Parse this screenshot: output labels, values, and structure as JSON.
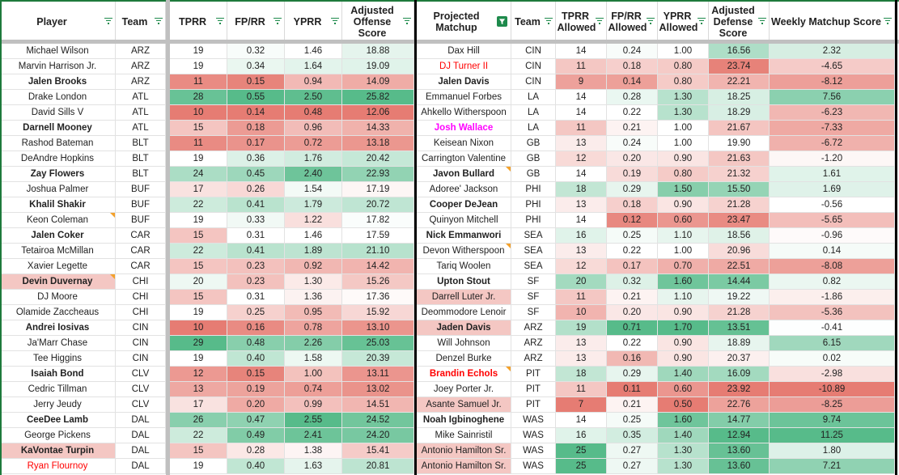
{
  "headers": {
    "left": [
      "Player",
      "Team",
      "TPRR",
      "FP/RR",
      "YPRR",
      "Adjusted Offense Score"
    ],
    "right": [
      "Projected Matchup",
      "Team",
      "TPRR Allowed",
      "FP/RR Allowed",
      "YPRR Allowed",
      "Adjusted Defense Score",
      "Weekly Matchup Score"
    ]
  },
  "icons": {
    "filter": "filter-icon",
    "active_filter": "active-filter-icon"
  },
  "colors": {
    "green_max": "#57bb8a",
    "red_max": "#e67c73",
    "neutral": "#ffffff",
    "header_accent": "#1e8a4c",
    "red_text": "#ff0000",
    "magenta_text": "#ff00ff"
  },
  "rows": [
    {
      "player": "Michael Wilson",
      "team": "ARZ",
      "tprr": "19",
      "fprr": "0.32",
      "yprr": "1.46",
      "aos": "18.88",
      "opp": "Dax Hill",
      "oteam": "CIN",
      "tpa": "14",
      "fpa": "0.24",
      "ypa": "1.00",
      "ads": "16.56",
      "wms": "2.32"
    },
    {
      "player": "Marvin Harrison Jr.",
      "team": "ARZ",
      "tprr": "19",
      "fprr": "0.34",
      "yprr": "1.64",
      "aos": "19.09",
      "opp": "DJ Turner II",
      "oteam": "CIN",
      "tpa": "11",
      "fpa": "0.18",
      "ypa": "0.80",
      "ads": "23.74",
      "wms": "-4.65"
    },
    {
      "player": "Jalen Brooks",
      "team": "ARZ",
      "tprr": "11",
      "fprr": "0.15",
      "yprr": "0.94",
      "aos": "14.09",
      "opp": "Jalen Davis",
      "oteam": "CIN",
      "tpa": "9",
      "fpa": "0.14",
      "ypa": "0.80",
      "ads": "22.21",
      "wms": "-8.12"
    },
    {
      "player": "Drake London",
      "team": "ATL",
      "tprr": "28",
      "fprr": "0.55",
      "yprr": "2.50",
      "aos": "25.82",
      "opp": "Emmanuel Forbes",
      "oteam": "LA",
      "tpa": "14",
      "fpa": "0.28",
      "ypa": "1.30",
      "ads": "18.25",
      "wms": "7.56"
    },
    {
      "player": "David Sills V",
      "team": "ATL",
      "tprr": "10",
      "fprr": "0.14",
      "yprr": "0.48",
      "aos": "12.06",
      "opp": "Ahkello Witherspoon",
      "oteam": "LA",
      "tpa": "14",
      "fpa": "0.22",
      "ypa": "1.30",
      "ads": "18.29",
      "wms": "-6.23"
    },
    {
      "player": "Darnell Mooney",
      "team": "ATL",
      "tprr": "15",
      "fprr": "0.18",
      "yprr": "0.96",
      "aos": "14.33",
      "opp": "Josh Wallace",
      "oteam": "LA",
      "tpa": "11",
      "fpa": "0.21",
      "ypa": "1.00",
      "ads": "21.67",
      "wms": "-7.33"
    },
    {
      "player": "Rashod Bateman",
      "team": "BLT",
      "tprr": "11",
      "fprr": "0.17",
      "yprr": "0.72",
      "aos": "13.18",
      "opp": "Keisean Nixon",
      "oteam": "GB",
      "tpa": "13",
      "fpa": "0.24",
      "ypa": "1.00",
      "ads": "19.90",
      "wms": "-6.72"
    },
    {
      "player": "DeAndre Hopkins",
      "team": "BLT",
      "tprr": "19",
      "fprr": "0.36",
      "yprr": "1.76",
      "aos": "20.42",
      "opp": "Carrington Valentine",
      "oteam": "GB",
      "tpa": "12",
      "fpa": "0.20",
      "ypa": "0.90",
      "ads": "21.63",
      "wms": "-1.20"
    },
    {
      "player": "Zay Flowers",
      "team": "BLT",
      "tprr": "24",
      "fprr": "0.45",
      "yprr": "2.40",
      "aos": "22.93",
      "opp": "Javon Bullard",
      "oteam": "GB",
      "tpa": "14",
      "fpa": "0.19",
      "ypa": "0.80",
      "ads": "21.32",
      "wms": "1.61"
    },
    {
      "player": "Joshua Palmer",
      "team": "BUF",
      "tprr": "17",
      "fprr": "0.26",
      "yprr": "1.54",
      "aos": "17.19",
      "opp": "Adoree' Jackson",
      "oteam": "PHI",
      "tpa": "18",
      "fpa": "0.29",
      "ypa": "1.50",
      "ads": "15.50",
      "wms": "1.69"
    },
    {
      "player": "Khalil Shakir",
      "team": "BUF",
      "tprr": "22",
      "fprr": "0.41",
      "yprr": "1.79",
      "aos": "20.72",
      "opp": "Cooper DeJean",
      "oteam": "PHI",
      "tpa": "13",
      "fpa": "0.18",
      "ypa": "0.90",
      "ads": "21.28",
      "wms": "-0.56"
    },
    {
      "player": "Keon Coleman",
      "team": "BUF",
      "tprr": "19",
      "fprr": "0.33",
      "yprr": "1.22",
      "aos": "17.82",
      "opp": "Quinyon Mitchell",
      "oteam": "PHI",
      "tpa": "14",
      "fpa": "0.12",
      "ypa": "0.60",
      "ads": "23.47",
      "wms": "-5.65"
    },
    {
      "player": "Jalen Coker",
      "team": "CAR",
      "tprr": "15",
      "fprr": "0.31",
      "yprr": "1.46",
      "aos": "17.59",
      "opp": "Nick Emmanwori",
      "oteam": "SEA",
      "tpa": "16",
      "fpa": "0.25",
      "ypa": "1.10",
      "ads": "18.56",
      "wms": "-0.96"
    },
    {
      "player": "Tetairoa McMillan",
      "team": "CAR",
      "tprr": "22",
      "fprr": "0.41",
      "yprr": "1.89",
      "aos": "21.10",
      "opp": "Devon Witherspoon",
      "oteam": "SEA",
      "tpa": "13",
      "fpa": "0.22",
      "ypa": "1.00",
      "ads": "20.96",
      "wms": "0.14"
    },
    {
      "player": "Xavier Legette",
      "team": "CAR",
      "tprr": "15",
      "fprr": "0.23",
      "yprr": "0.92",
      "aos": "14.42",
      "opp": "Tariq Woolen",
      "oteam": "SEA",
      "tpa": "12",
      "fpa": "0.17",
      "ypa": "0.70",
      "ads": "22.51",
      "wms": "-8.08"
    },
    {
      "player": "Devin Duvernay",
      "team": "CHI",
      "tprr": "20",
      "fprr": "0.23",
      "yprr": "1.30",
      "aos": "15.26",
      "opp": "Upton Stout",
      "oteam": "SF",
      "tpa": "20",
      "fpa": "0.32",
      "ypa": "1.60",
      "ads": "14.44",
      "wms": "0.82"
    },
    {
      "player": "DJ Moore",
      "team": "CHI",
      "tprr": "15",
      "fprr": "0.31",
      "yprr": "1.36",
      "aos": "17.36",
      "opp": "Darrell Luter Jr.",
      "oteam": "SF",
      "tpa": "11",
      "fpa": "0.21",
      "ypa": "1.10",
      "ads": "19.22",
      "wms": "-1.86"
    },
    {
      "player": "Olamide Zaccheaus",
      "team": "CHI",
      "tprr": "19",
      "fprr": "0.25",
      "yprr": "0.95",
      "aos": "15.92",
      "opp": "Deommodore Lenoir",
      "oteam": "SF",
      "tpa": "10",
      "fpa": "0.20",
      "ypa": "0.90",
      "ads": "21.28",
      "wms": "-5.36"
    },
    {
      "player": "Andrei Iosivas",
      "team": "CIN",
      "tprr": "10",
      "fprr": "0.16",
      "yprr": "0.78",
      "aos": "13.10",
      "opp": "Jaden Davis",
      "oteam": "ARZ",
      "tpa": "19",
      "fpa": "0.71",
      "ypa": "1.70",
      "ads": "13.51",
      "wms": "-0.41"
    },
    {
      "player": "Ja'Marr Chase",
      "team": "CIN",
      "tprr": "29",
      "fprr": "0.48",
      "yprr": "2.26",
      "aos": "25.03",
      "opp": "Will Johnson",
      "oteam": "ARZ",
      "tpa": "13",
      "fpa": "0.22",
      "ypa": "0.90",
      "ads": "18.89",
      "wms": "6.15"
    },
    {
      "player": "Tee Higgins",
      "team": "CIN",
      "tprr": "19",
      "fprr": "0.40",
      "yprr": "1.58",
      "aos": "20.39",
      "opp": "Denzel Burke",
      "oteam": "ARZ",
      "tpa": "13",
      "fpa": "0.16",
      "ypa": "0.90",
      "ads": "20.37",
      "wms": "0.02"
    },
    {
      "player": "Isaiah Bond",
      "team": "CLV",
      "tprr": "12",
      "fprr": "0.15",
      "yprr": "1.00",
      "aos": "13.11",
      "opp": "Brandin Echols",
      "oteam": "PIT",
      "tpa": "18",
      "fpa": "0.29",
      "ypa": "1.40",
      "ads": "16.09",
      "wms": "-2.98"
    },
    {
      "player": "Cedric Tillman",
      "team": "CLV",
      "tprr": "13",
      "fprr": "0.19",
      "yprr": "0.74",
      "aos": "13.02",
      "opp": "Joey Porter Jr.",
      "oteam": "PIT",
      "tpa": "11",
      "fpa": "0.11",
      "ypa": "0.60",
      "ads": "23.92",
      "wms": "-10.89"
    },
    {
      "player": "Jerry Jeudy",
      "team": "CLV",
      "tprr": "17",
      "fprr": "0.20",
      "yprr": "0.99",
      "aos": "14.51",
      "opp": "Asante Samuel Jr.",
      "oteam": "PIT",
      "tpa": "7",
      "fpa": "0.21",
      "ypa": "0.50",
      "ads": "22.76",
      "wms": "-8.25"
    },
    {
      "player": "CeeDee Lamb",
      "team": "DAL",
      "tprr": "26",
      "fprr": "0.47",
      "yprr": "2.55",
      "aos": "24.52",
      "opp": "Noah Igbinoghene",
      "oteam": "WAS",
      "tpa": "14",
      "fpa": "0.25",
      "ypa": "1.60",
      "ads": "14.77",
      "wms": "9.74"
    },
    {
      "player": "George Pickens",
      "team": "DAL",
      "tprr": "22",
      "fprr": "0.49",
      "yprr": "2.41",
      "aos": "24.20",
      "opp": "Mike Sainristil",
      "oteam": "WAS",
      "tpa": "16",
      "fpa": "0.35",
      "ypa": "1.40",
      "ads": "12.94",
      "wms": "11.25"
    },
    {
      "player": "KaVontae Turpin",
      "team": "DAL",
      "tprr": "15",
      "fprr": "0.28",
      "yprr": "1.38",
      "aos": "15.41",
      "opp": "Antonio Hamilton Sr.",
      "oteam": "WAS",
      "tpa": "25",
      "fpa": "0.27",
      "ypa": "1.30",
      "ads": "13.60",
      "wms": "1.80"
    },
    {
      "player": "Ryan Flournoy",
      "team": "DAL",
      "tprr": "19",
      "fprr": "0.40",
      "yprr": "1.63",
      "aos": "20.81",
      "opp": "Antonio Hamilton Sr.",
      "oteam": "WAS",
      "tpa": "25",
      "fpa": "0.27",
      "ypa": "1.30",
      "ads": "13.60",
      "wms": "7.21"
    }
  ],
  "styles": {
    "bold_players": [
      "Jalen Brooks",
      "Darnell Mooney",
      "Zay Flowers",
      "Khalil Shakir",
      "Jalen Coker",
      "Devin Duvernay",
      "Andrei Iosivas",
      "Isaiah Bond",
      "CeeDee Lamb",
      "KaVontae Turpin"
    ],
    "bold_opps_rows": [
      2,
      5,
      8,
      10,
      12,
      15,
      18,
      21,
      24
    ],
    "player_pink_rows": [
      15,
      26
    ],
    "opp_pink_rows": [
      16,
      18,
      23,
      26,
      27
    ],
    "player_red_rows": [
      27
    ],
    "opp_red_rows": [
      1,
      21
    ],
    "opp_magenta_rows": [
      5
    ],
    "player_note_rows": [
      11,
      15
    ],
    "opp_note_rows": [
      8,
      13,
      21
    ]
  }
}
